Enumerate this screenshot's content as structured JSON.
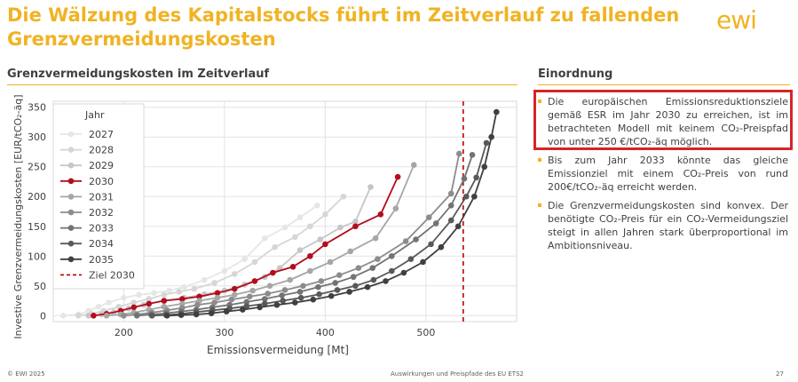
{
  "slide": {
    "title": "Die Wälzung des Kapitalstocks führt im Zeitverlauf zu fallenden Grenzvermeidungskosten",
    "logo_text": "ewi",
    "left_heading": "Grenzvermeidungskosten im Zeitverlauf",
    "right_heading": "Einordnung"
  },
  "bullets": [
    "Die europäischen Emissionsreduktionsziele gemäß ESR im Jahr 2030 zu erreichen, ist im betrachteten Modell mit keinem CO₂-Preispfad von unter 250 €/tCO₂-äq möglich.",
    "Bis zum Jahr 2033 könnte das gleiche Emissionziel mit einem CO₂-Preis von rund 200€/tCO₂-äq erreicht werden.",
    "Die Grenzvermeidungskosten sind konvex. Der benötigte CO₂-Preis für ein CO₂-Vermeidungsziel steigt in allen Jahren stark überproportional im Ambitionsniveau."
  ],
  "footer": {
    "left": "© EWI 2025",
    "center": "Auswirkungen und Preispfade des EU ETS2",
    "page": "27"
  },
  "colors": {
    "accent": "#f0b323",
    "highlight_box": "#d8232a",
    "target_line": "#c00000"
  },
  "chart_data": {
    "type": "line",
    "xlabel": "Emissionsvermeidung [Mt]",
    "ylabel": "Investive Grenzvermeidungskosten [EUR/tCO₂-äq]",
    "xlim": [
      130,
      590
    ],
    "ylim": [
      -10,
      360
    ],
    "xticks": [
      200,
      300,
      400,
      500
    ],
    "yticks": [
      0,
      50,
      100,
      150,
      200,
      250,
      300,
      350
    ],
    "grid": true,
    "legend_title": "Jahr",
    "legend_position": "top-left",
    "target_line": {
      "name": "Ziel 2030",
      "x": 537,
      "style": "dashed",
      "color": "#c00000"
    },
    "series": [
      {
        "name": "2027",
        "color": "#e6e6e6",
        "points": [
          [
            140,
            0
          ],
          [
            155,
            2
          ],
          [
            165,
            8
          ],
          [
            175,
            15
          ],
          [
            185,
            22
          ],
          [
            200,
            30
          ],
          [
            215,
            35
          ],
          [
            230,
            38
          ],
          [
            245,
            42
          ],
          [
            260,
            48
          ],
          [
            280,
            60
          ],
          [
            300,
            75
          ],
          [
            320,
            95
          ],
          [
            340,
            130
          ],
          [
            360,
            148
          ],
          [
            375,
            165
          ],
          [
            392,
            185
          ]
        ]
      },
      {
        "name": "2028",
        "color": "#d6d6d6",
        "points": [
          [
            155,
            0
          ],
          [
            168,
            3
          ],
          [
            180,
            8
          ],
          [
            195,
            15
          ],
          [
            210,
            22
          ],
          [
            225,
            28
          ],
          [
            240,
            35
          ],
          [
            255,
            40
          ],
          [
            270,
            45
          ],
          [
            290,
            55
          ],
          [
            310,
            70
          ],
          [
            330,
            90
          ],
          [
            350,
            115
          ],
          [
            370,
            132
          ],
          [
            385,
            150
          ],
          [
            400,
            170
          ],
          [
            418,
            200
          ]
        ]
      },
      {
        "name": "2029",
        "color": "#c6c6c6",
        "points": [
          [
            165,
            0
          ],
          [
            178,
            2
          ],
          [
            190,
            6
          ],
          [
            205,
            12
          ],
          [
            220,
            18
          ],
          [
            240,
            25
          ],
          [
            260,
            30
          ],
          [
            280,
            36
          ],
          [
            300,
            42
          ],
          [
            320,
            52
          ],
          [
            340,
            65
          ],
          [
            355,
            80
          ],
          [
            375,
            110
          ],
          [
            395,
            128
          ],
          [
            415,
            148
          ],
          [
            430,
            158
          ],
          [
            445,
            216
          ]
        ]
      },
      {
        "name": "2030",
        "color": "#b30d1d",
        "points": [
          [
            170,
            0
          ],
          [
            183,
            3
          ],
          [
            197,
            8
          ],
          [
            210,
            14
          ],
          [
            225,
            20
          ],
          [
            240,
            25
          ],
          [
            258,
            28
          ],
          [
            275,
            32
          ],
          [
            293,
            38
          ],
          [
            310,
            45
          ],
          [
            330,
            58
          ],
          [
            348,
            72
          ],
          [
            368,
            82
          ],
          [
            385,
            100
          ],
          [
            400,
            120
          ],
          [
            430,
            150
          ],
          [
            455,
            170
          ],
          [
            472,
            233
          ]
        ]
      },
      {
        "name": "2031",
        "color": "#a6a6a6",
        "points": [
          [
            183,
            0
          ],
          [
            197,
            2
          ],
          [
            210,
            5
          ],
          [
            225,
            10
          ],
          [
            240,
            15
          ],
          [
            258,
            20
          ],
          [
            275,
            25
          ],
          [
            293,
            30
          ],
          [
            310,
            35
          ],
          [
            328,
            42
          ],
          [
            345,
            50
          ],
          [
            365,
            60
          ],
          [
            385,
            75
          ],
          [
            405,
            90
          ],
          [
            425,
            108
          ],
          [
            450,
            130
          ],
          [
            470,
            180
          ],
          [
            488,
            253
          ]
        ]
      },
      {
        "name": "2032",
        "color": "#8c8c8c",
        "points": [
          [
            200,
            0
          ],
          [
            213,
            2
          ],
          [
            228,
            5
          ],
          [
            243,
            9
          ],
          [
            258,
            13
          ],
          [
            273,
            18
          ],
          [
            290,
            22
          ],
          [
            307,
            27
          ],
          [
            325,
            32
          ],
          [
            343,
            37
          ],
          [
            360,
            43
          ],
          [
            378,
            50
          ],
          [
            396,
            58
          ],
          [
            414,
            68
          ],
          [
            433,
            80
          ],
          [
            452,
            95
          ],
          [
            480,
            125
          ],
          [
            503,
            165
          ],
          [
            525,
            205
          ],
          [
            533,
            272
          ]
        ]
      },
      {
        "name": "2033",
        "color": "#737373",
        "points": [
          [
            213,
            0
          ],
          [
            227,
            2
          ],
          [
            242,
            4
          ],
          [
            257,
            7
          ],
          [
            272,
            10
          ],
          [
            288,
            14
          ],
          [
            305,
            18
          ],
          [
            322,
            23
          ],
          [
            340,
            28
          ],
          [
            357,
            34
          ],
          [
            375,
            40
          ],
          [
            393,
            48
          ],
          [
            410,
            55
          ],
          [
            428,
            65
          ],
          [
            447,
            80
          ],
          [
            466,
            100
          ],
          [
            490,
            128
          ],
          [
            510,
            155
          ],
          [
            525,
            185
          ],
          [
            538,
            230
          ],
          [
            546,
            270
          ]
        ]
      },
      {
        "name": "2034",
        "color": "#595959",
        "points": [
          [
            228,
            0
          ],
          [
            242,
            1
          ],
          [
            257,
            3
          ],
          [
            272,
            6
          ],
          [
            288,
            9
          ],
          [
            305,
            12
          ],
          [
            322,
            16
          ],
          [
            340,
            20
          ],
          [
            358,
            25
          ],
          [
            376,
            30
          ],
          [
            394,
            36
          ],
          [
            412,
            43
          ],
          [
            430,
            50
          ],
          [
            448,
            60
          ],
          [
            466,
            75
          ],
          [
            485,
            95
          ],
          [
            505,
            120
          ],
          [
            525,
            160
          ],
          [
            540,
            200
          ],
          [
            550,
            232
          ],
          [
            560,
            290
          ]
        ]
      },
      {
        "name": "2035",
        "color": "#404040",
        "points": [
          [
            243,
            0
          ],
          [
            257,
            1
          ],
          [
            272,
            2
          ],
          [
            287,
            4
          ],
          [
            302,
            7
          ],
          [
            318,
            10
          ],
          [
            335,
            14
          ],
          [
            352,
            18
          ],
          [
            370,
            22
          ],
          [
            388,
            27
          ],
          [
            406,
            33
          ],
          [
            424,
            40
          ],
          [
            442,
            48
          ],
          [
            460,
            58
          ],
          [
            478,
            72
          ],
          [
            497,
            90
          ],
          [
            515,
            115
          ],
          [
            532,
            150
          ],
          [
            548,
            200
          ],
          [
            558,
            250
          ],
          [
            565,
            300
          ],
          [
            570,
            342
          ]
        ]
      }
    ]
  }
}
